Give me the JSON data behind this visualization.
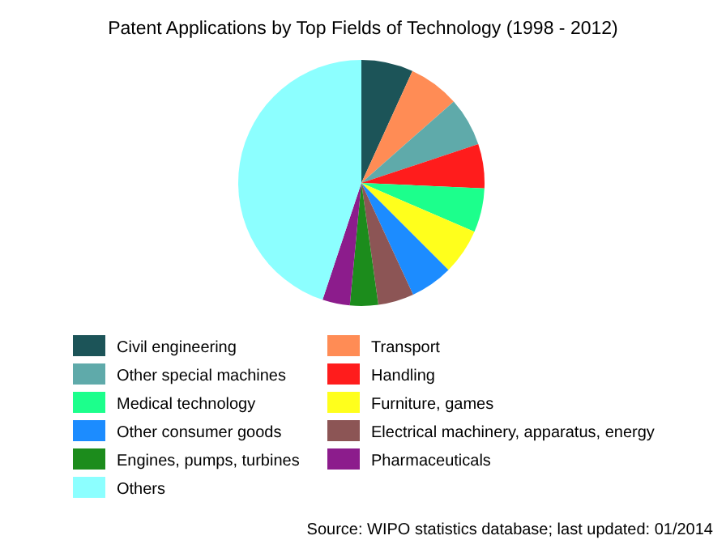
{
  "chart_data": {
    "type": "pie",
    "title": "Patent Applications by Top Fields of Technology (1998 - 2012)",
    "categories": [
      "Civil engineering",
      "Transport",
      "Other special machines",
      "Handling",
      "Medical technology",
      "Furniture, games",
      "Other consumer goods",
      "Electrical machinery, apparatus, energy",
      "Engines, pumps, turbines",
      "Pharmaceuticals",
      "Others"
    ],
    "values": [
      6.8,
      6.7,
      6.4,
      5.8,
      5.8,
      6.0,
      5.6,
      4.7,
      3.7,
      3.6,
      44.9
    ],
    "colors": [
      "#1c5458",
      "#ff8c55",
      "#5faaaa",
      "#ff1c1c",
      "#1cff8c",
      "#ffff1c",
      "#1c8cff",
      "#8c5555",
      "#1c8c1c",
      "#8c1c8c",
      "#8cffff"
    ],
    "legend": "bottom",
    "annotations": [
      "Source: WIPO statistics database; last updated: 01/2014"
    ]
  }
}
